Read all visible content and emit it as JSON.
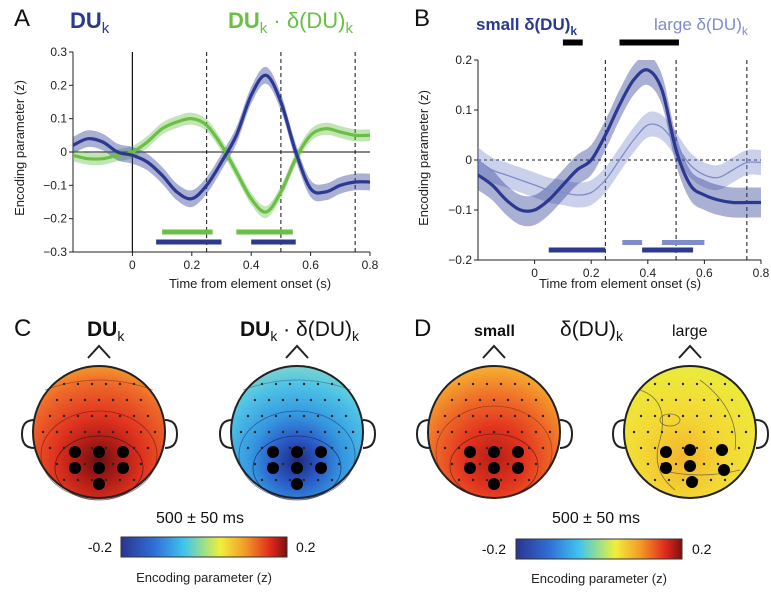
{
  "panels": {
    "A": {
      "letter": "A",
      "legend_du": "DU",
      "legend_du_sub": "k",
      "legend_int_a": "DU",
      "legend_int_a_sub": "k",
      "legend_int_dot": " · δ(DU)",
      "legend_int_b_sub": "k",
      "xlabel": "Time from element onset (s)",
      "ylabel": "Encoding parameter (z)"
    },
    "B": {
      "letter": "B",
      "legend_small": "small δ(DU)",
      "legend_small_sub": "k",
      "legend_large": "large δ(DU)",
      "legend_large_sub": "k",
      "xlabel": "Time from element onset (s)",
      "ylabel": "Encoding parameter (z)"
    },
    "C": {
      "letter": "C",
      "title_left": "DU",
      "title_left_sub": "k",
      "title_right_a": "DU",
      "title_right_a_sub": "k",
      "title_right_dot": " · δ(DU)",
      "title_right_b_sub": "k",
      "time_window": "500 ± 50 ms",
      "cbar_min": "-0.2",
      "cbar_max": "0.2",
      "cbar_label": "Encoding parameter (z)"
    },
    "D": {
      "letter": "D",
      "title_small": "small",
      "title_mid": "δ(DU)",
      "title_mid_sub": "k",
      "title_large": "large",
      "time_window": "500 ± 50 ms",
      "cbar_min": "-0.2",
      "cbar_max": "0.2",
      "cbar_label": "Encoding parameter (z)"
    }
  },
  "colors": {
    "du_dark_blue": "#2b3990",
    "interaction_green": "#6abf45",
    "small_blue": "#2b3990",
    "large_blue": "#7f8ccc",
    "sig_black": "#000000"
  },
  "chart_data": [
    {
      "type": "line",
      "panel": "A",
      "xlabel": "Time from element onset (s)",
      "ylabel": "Encoding parameter (z)",
      "xlim": [
        -0.2,
        0.8
      ],
      "ylim": [
        -0.3,
        0.3
      ],
      "xticks": [
        0,
        0.2,
        0.4,
        0.6,
        0.8
      ],
      "yticks": [
        -0.3,
        -0.2,
        -0.1,
        0,
        0.1,
        0.2,
        0.3
      ],
      "vlines_dashed": [
        0.25,
        0.5,
        0.75
      ],
      "series": [
        {
          "name": "DU_k",
          "color": "#2b3990",
          "x": [
            -0.2,
            -0.15,
            -0.1,
            -0.05,
            0,
            0.05,
            0.1,
            0.15,
            0.2,
            0.25,
            0.3,
            0.35,
            0.4,
            0.45,
            0.5,
            0.55,
            0.6,
            0.65,
            0.7,
            0.75,
            0.8
          ],
          "y": [
            0.02,
            0.04,
            0.03,
            0.0,
            -0.01,
            -0.03,
            -0.07,
            -0.12,
            -0.14,
            -0.1,
            -0.03,
            0.05,
            0.17,
            0.23,
            0.15,
            0.0,
            -0.11,
            -0.12,
            -0.1,
            -0.09,
            -0.09
          ],
          "band": 0.025
        },
        {
          "name": "DU_k · δ(DU)_k",
          "color": "#6abf45",
          "x": [
            -0.2,
            -0.15,
            -0.1,
            -0.05,
            0,
            0.05,
            0.1,
            0.15,
            0.2,
            0.25,
            0.3,
            0.35,
            0.4,
            0.45,
            0.5,
            0.55,
            0.6,
            0.65,
            0.7,
            0.75,
            0.8
          ],
          "y": [
            -0.01,
            -0.02,
            -0.02,
            -0.01,
            0.0,
            0.03,
            0.07,
            0.09,
            0.1,
            0.08,
            0.02,
            -0.06,
            -0.14,
            -0.18,
            -0.12,
            -0.02,
            0.05,
            0.07,
            0.06,
            0.05,
            0.05
          ],
          "band": 0.018
        }
      ],
      "sig_bars": [
        {
          "color": "#6abf45",
          "start": 0.1,
          "end": 0.27,
          "y": -0.24
        },
        {
          "color": "#6abf45",
          "start": 0.35,
          "end": 0.54,
          "y": -0.24
        },
        {
          "color": "#2b3990",
          "start": 0.08,
          "end": 0.3,
          "y": -0.27
        },
        {
          "color": "#2b3990",
          "start": 0.4,
          "end": 0.55,
          "y": -0.27
        }
      ]
    },
    {
      "type": "line",
      "panel": "B",
      "xlabel": "Time from element onset (s)",
      "ylabel": "Encoding parameter (z)",
      "xlim": [
        -0.2,
        0.8
      ],
      "ylim": [
        -0.2,
        0.2
      ],
      "xticks": [
        0,
        0.2,
        0.4,
        0.6,
        0.8
      ],
      "yticks": [
        -0.2,
        -0.1,
        0,
        0.1,
        0.2
      ],
      "vlines_dashed": [
        0.25,
        0.5,
        0.75
      ],
      "series": [
        {
          "name": "small δ(DU)_k",
          "color": "#2b3990",
          "x": [
            -0.2,
            -0.15,
            -0.1,
            -0.05,
            0,
            0.05,
            0.1,
            0.15,
            0.2,
            0.25,
            0.3,
            0.35,
            0.4,
            0.45,
            0.5,
            0.55,
            0.6,
            0.65,
            0.7,
            0.75,
            0.8
          ],
          "y": [
            -0.03,
            -0.05,
            -0.08,
            -0.1,
            -0.1,
            -0.08,
            -0.05,
            -0.02,
            0.0,
            0.05,
            0.11,
            0.16,
            0.18,
            0.14,
            0.02,
            -0.05,
            -0.07,
            -0.08,
            -0.085,
            -0.085,
            -0.085
          ],
          "band": 0.03
        },
        {
          "name": "large δ(DU)_k",
          "color": "#7f8ccc",
          "x": [
            -0.2,
            -0.15,
            -0.1,
            -0.05,
            0,
            0.05,
            0.1,
            0.15,
            0.2,
            0.25,
            0.3,
            0.35,
            0.4,
            0.45,
            0.5,
            0.55,
            0.6,
            0.65,
            0.7,
            0.75,
            0.8
          ],
          "y": [
            0.0,
            -0.02,
            -0.03,
            -0.04,
            -0.05,
            -0.06,
            -0.065,
            -0.07,
            -0.065,
            -0.04,
            0.0,
            0.04,
            0.07,
            0.065,
            0.03,
            -0.01,
            -0.03,
            -0.035,
            -0.02,
            -0.005,
            -0.005
          ],
          "band": 0.025
        }
      ],
      "sig_bars": [
        {
          "color": "#000000",
          "start": 0.1,
          "end": 0.17,
          "y": 0.235
        },
        {
          "color": "#000000",
          "start": 0.3,
          "end": 0.51,
          "y": 0.235
        },
        {
          "color": "#7f8ccc",
          "start": 0.31,
          "end": 0.38,
          "y": -0.165
        },
        {
          "color": "#7f8ccc",
          "start": 0.45,
          "end": 0.6,
          "y": -0.165
        },
        {
          "color": "#2b3990",
          "start": 0.05,
          "end": 0.25,
          "y": -0.18
        },
        {
          "color": "#2b3990",
          "start": 0.38,
          "end": 0.56,
          "y": -0.18
        }
      ]
    }
  ]
}
